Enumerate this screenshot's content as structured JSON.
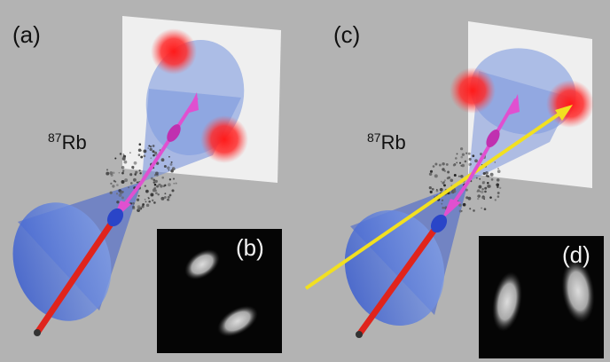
{
  "panels": {
    "a": {
      "label": "(a)",
      "isotope": {
        "mass": "87",
        "symbol": "Rb"
      }
    },
    "b": {
      "label": "(b)"
    },
    "c": {
      "label": "(c)",
      "isotope": {
        "mass": "87",
        "symbol": "Rb"
      }
    },
    "d": {
      "label": "(d)"
    }
  },
  "colors": {
    "background": "#b3b3b3",
    "cone": "#5f7fd6",
    "spot": "#ff2222",
    "pump_arrow": "#e0241c",
    "momentum_arrow": "#e050d0",
    "probe_beam": "#f2e020",
    "screen": "#f4f4f4",
    "inset_background": "#050505"
  }
}
